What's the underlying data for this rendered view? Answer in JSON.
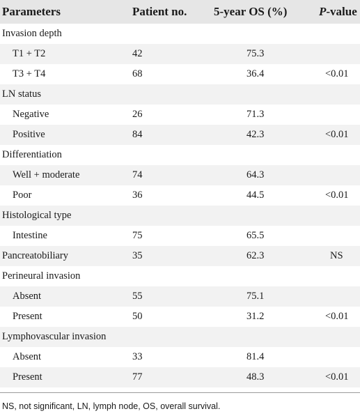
{
  "table": {
    "headers": {
      "parameters": "Parameters",
      "patient_no": "Patient no.",
      "os": "5-year OS (%)",
      "p_value_italic": "P",
      "p_value_rest": "-value"
    },
    "rows": [
      {
        "parameter": "Invasion depth",
        "indent": false,
        "patient_no": "",
        "os": "",
        "p_value": ""
      },
      {
        "parameter": "T1 + T2",
        "indent": true,
        "patient_no": "42",
        "os": "75.3",
        "p_value": ""
      },
      {
        "parameter": "T3 + T4",
        "indent": true,
        "patient_no": "68",
        "os": "36.4",
        "p_value": "<0.01"
      },
      {
        "parameter": "LN status",
        "indent": false,
        "patient_no": "",
        "os": "",
        "p_value": ""
      },
      {
        "parameter": "Negative",
        "indent": true,
        "patient_no": "26",
        "os": "71.3",
        "p_value": ""
      },
      {
        "parameter": "Positive",
        "indent": true,
        "patient_no": "84",
        "os": "42.3",
        "p_value": "<0.01"
      },
      {
        "parameter": "Differentiation",
        "indent": false,
        "patient_no": "",
        "os": "",
        "p_value": ""
      },
      {
        "parameter": "Well + moderate",
        "indent": true,
        "patient_no": "74",
        "os": "64.3",
        "p_value": ""
      },
      {
        "parameter": "Poor",
        "indent": true,
        "patient_no": "36",
        "os": "44.5",
        "p_value": "<0.01"
      },
      {
        "parameter": "Histological type",
        "indent": false,
        "patient_no": "",
        "os": "",
        "p_value": ""
      },
      {
        "parameter": "Intestine",
        "indent": true,
        "patient_no": "75",
        "os": "65.5",
        "p_value": ""
      },
      {
        "parameter": "Pancreatobiliary",
        "indent": false,
        "patient_no": "35",
        "os": "62.3",
        "p_value": "NS"
      },
      {
        "parameter": "Perineural invasion",
        "indent": false,
        "patient_no": "",
        "os": "",
        "p_value": ""
      },
      {
        "parameter": "Absent",
        "indent": true,
        "patient_no": "55",
        "os": "75.1",
        "p_value": ""
      },
      {
        "parameter": "Present",
        "indent": true,
        "patient_no": "50",
        "os": "31.2",
        "p_value": "<0.01"
      },
      {
        "parameter": "Lymphovascular invasion",
        "indent": false,
        "patient_no": "",
        "os": "",
        "p_value": ""
      },
      {
        "parameter": "Absent",
        "indent": true,
        "patient_no": "33",
        "os": "81.4",
        "p_value": ""
      },
      {
        "parameter": "Present",
        "indent": true,
        "patient_no": "77",
        "os": "48.3",
        "p_value": "<0.01"
      }
    ]
  },
  "footnote": "NS, not significant, LN, lymph node, OS, overall survival.",
  "colors": {
    "header_bg": "#e6e6e6",
    "shaded_row_bg": "#f2f2f2",
    "rule": "#9a9a9a"
  }
}
